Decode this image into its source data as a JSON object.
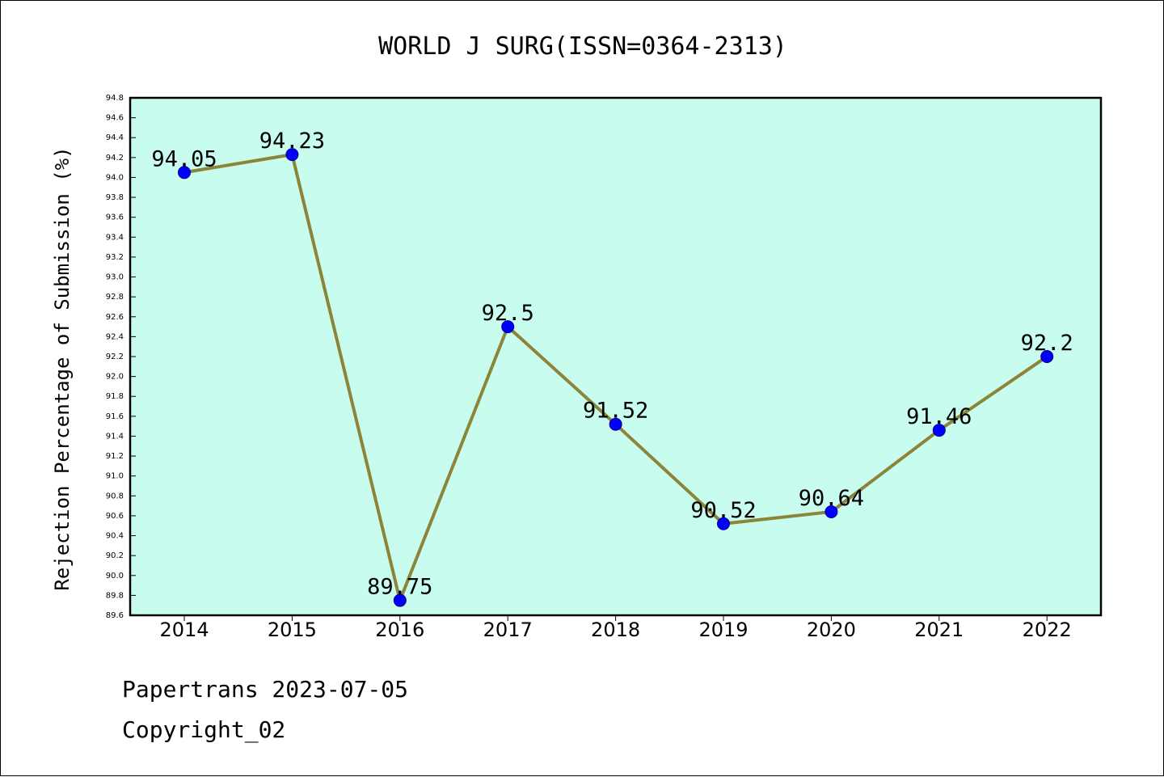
{
  "chart_data": {
    "type": "line",
    "title": "WORLD J SURG(ISSN=0364-2313)",
    "xlabel": "",
    "ylabel": "Rejection Percentage of Submission (%)",
    "categories": [
      "2014",
      "2015",
      "2016",
      "2017",
      "2018",
      "2019",
      "2020",
      "2021",
      "2022"
    ],
    "series": [
      {
        "values": [
          94.05,
          94.23,
          89.75,
          92.5,
          91.52,
          90.52,
          90.64,
          91.46,
          92.2
        ],
        "labels": [
          "94.05",
          "94.23",
          "89.75",
          "92.5",
          "91.52",
          "90.52",
          "90.64",
          "91.46",
          "92.2"
        ],
        "line_color": "#8b8439",
        "marker_color": "#0000ff"
      }
    ],
    "ylim": [
      89.6,
      94.8
    ],
    "yticks": [
      "89.6",
      "89.8",
      "90.0",
      "90.2",
      "90.4",
      "90.6",
      "90.8",
      "91.0",
      "91.2",
      "91.4",
      "91.6",
      "91.8",
      "92.0",
      "92.2",
      "92.4",
      "92.6",
      "92.8",
      "93.0",
      "93.2",
      "93.4",
      "93.6",
      "93.8",
      "94.0",
      "94.2",
      "94.4",
      "94.6",
      "94.8"
    ],
    "grid": false,
    "plot_background": "#c8fcef"
  },
  "footer": {
    "line1": "Papertrans 2023-07-05",
    "line2": "Copyright_02"
  }
}
